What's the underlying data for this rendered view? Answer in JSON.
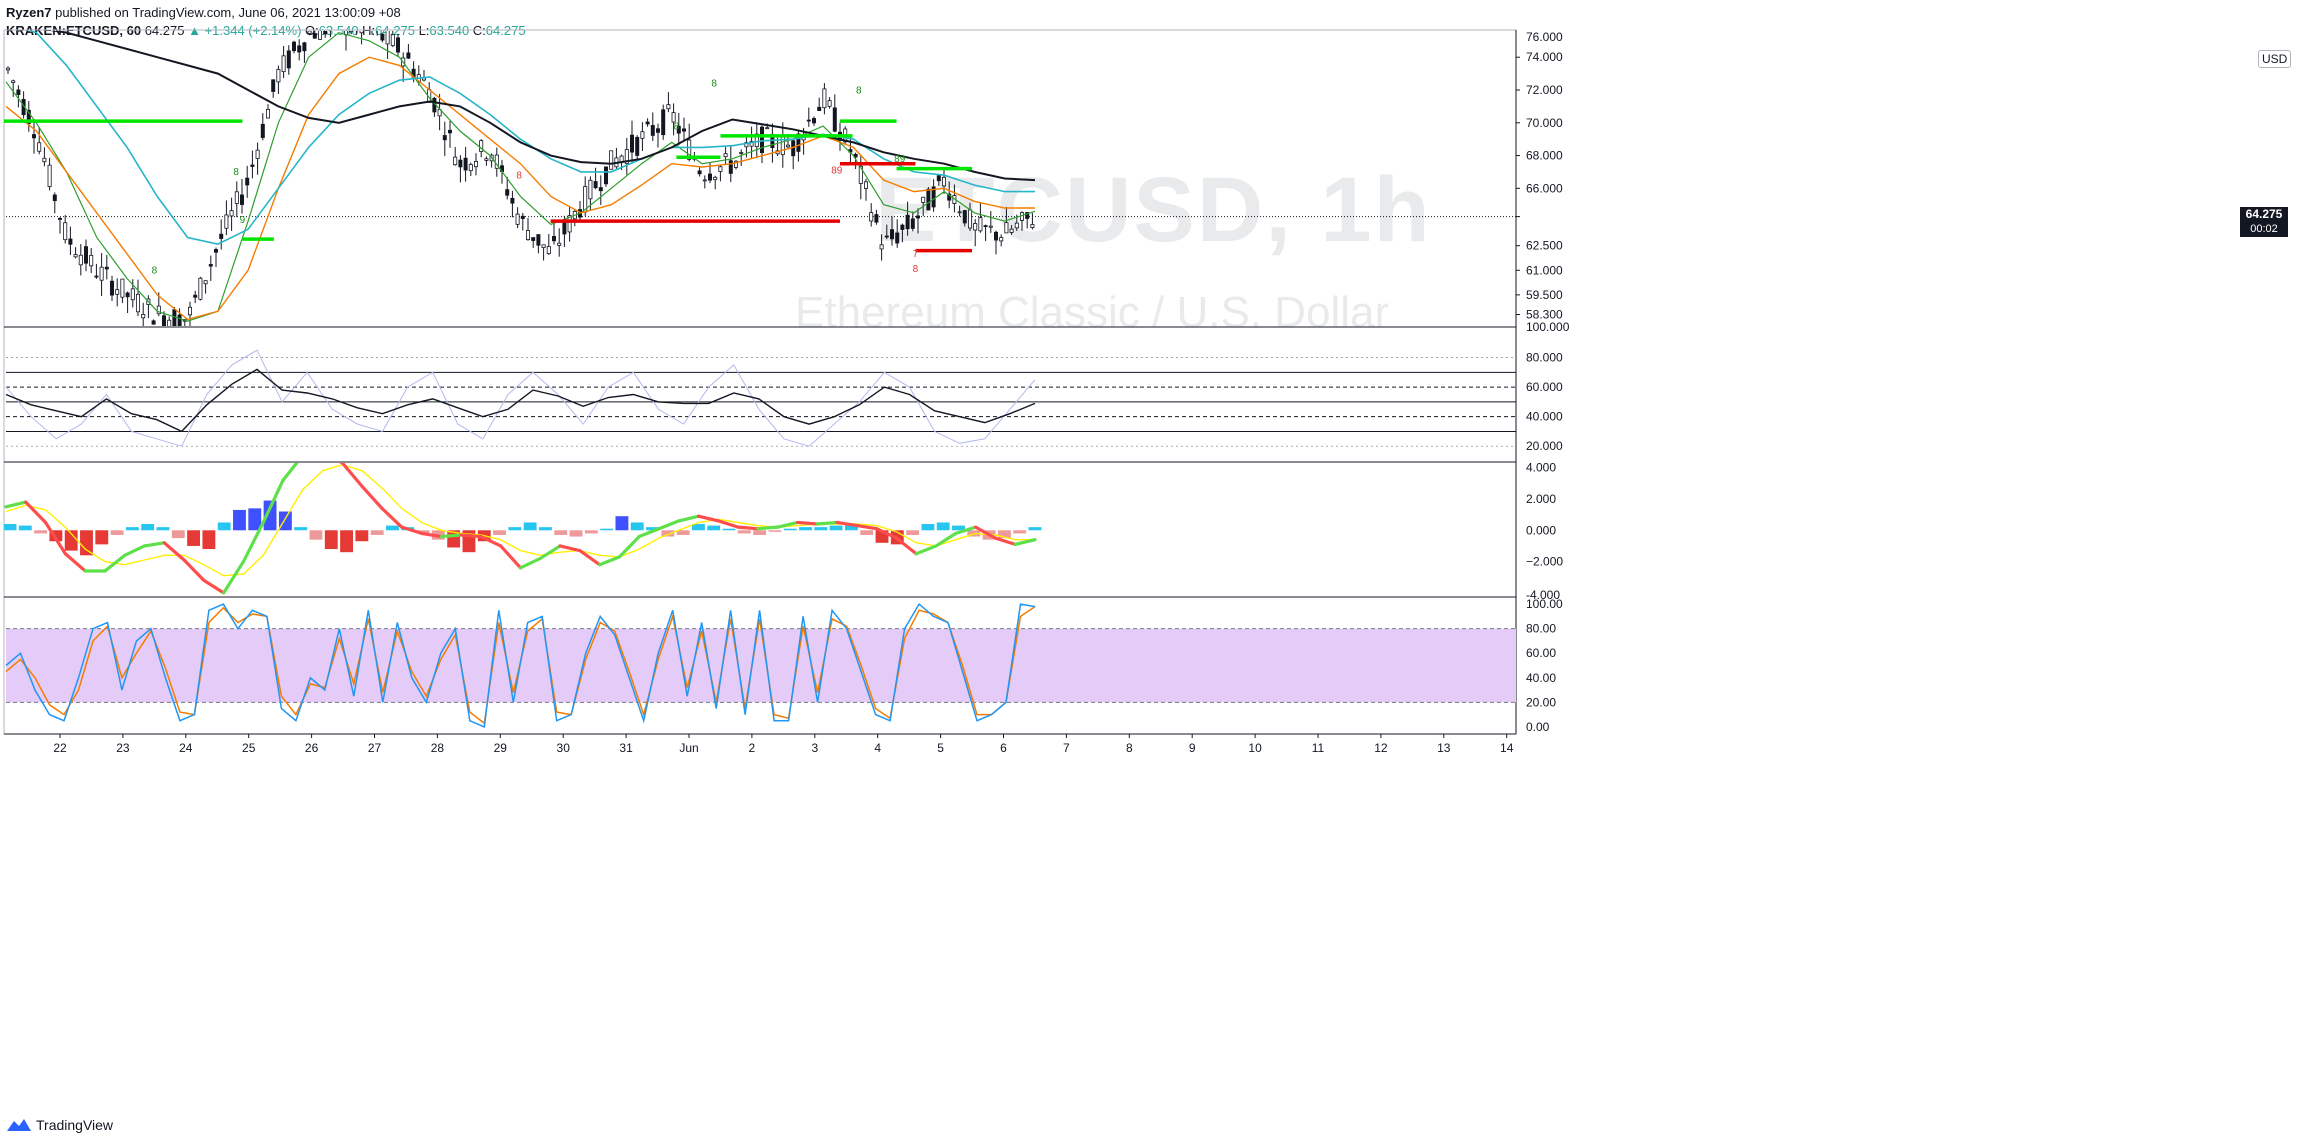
{
  "header": {
    "author": "Ryzen7",
    "published": "published on TradingView.com, June 06, 2021 13:00:09 +08",
    "symbol": "KRAKEN:ETCUSD, 60",
    "last": "64.275",
    "change": "▲ +1.344 (+2.14%)",
    "o_label": "O:",
    "o_val": "63.540",
    "h_label": "H:",
    "h_val": "64.275",
    "l_label": "L:",
    "l_val": "63.540",
    "c_label": "C:",
    "c_val": "64.275"
  },
  "watermark": {
    "symbol": "ETCUSD, 1h",
    "name": "Ethereum Classic / U.S. Dollar"
  },
  "currency_badge": "USD",
  "last_price": {
    "value": "64.275",
    "countdown": "00:02"
  },
  "footer": {
    "brand": "TradingView"
  },
  "colors": {
    "up": "#26a69a",
    "green_level": "#00e600",
    "red_level": "#e60000",
    "ema_short": "#2e9e2e",
    "ema_mid": "#f57c00",
    "ema_long": "#26b6c9",
    "ma_black": "#131722",
    "stoch_band": "#e5cbf7"
  },
  "chart_data": [
    {
      "type": "line",
      "title": "",
      "pane": "price",
      "ylim": [
        57.6,
        75.6
      ],
      "y_ticks": [
        "74.000",
        "72.000",
        "70.000",
        "68.000",
        "66.000",
        "64.275",
        "62.500",
        "61.000",
        "59.500",
        "58.300"
      ],
      "y_top_partial": "76.000",
      "x_ticks": [
        "22",
        "23",
        "24",
        "25",
        "26",
        "27",
        "28",
        "29",
        "30",
        "31",
        "Jun",
        "2",
        "3",
        "4",
        "5",
        "6",
        "7",
        "8",
        "9",
        "10",
        "11",
        "12",
        "13",
        "14"
      ],
      "series": [
        {
          "values": [
            73.5,
            69.5,
            63.0,
            61.0,
            59.5,
            58.3,
            58.0,
            62.5,
            66.5,
            73.0,
            75.5,
            76.0,
            75.8,
            74.5,
            72.0,
            67.5,
            68.5,
            64.0,
            62.0,
            65.0,
            67.5,
            69.0,
            70.5,
            67.0,
            67.5,
            69.0,
            68.5,
            71.5,
            68.0,
            62.5,
            64.0,
            66.5,
            63.5,
            63.2,
            64.275
          ]
        },
        {
          "values": [
            72.5,
            70.0,
            67.0,
            63.0,
            60.5,
            58.5,
            57.9,
            58.5,
            64.0,
            70.0,
            74.0,
            75.5,
            75.0,
            74.0,
            71.5,
            69.5,
            68.0,
            65.5,
            63.8,
            64.5,
            66.0,
            67.5,
            68.8,
            67.5,
            67.8,
            68.5,
            69.0,
            69.8,
            68.0,
            65.0,
            64.5,
            65.8,
            64.5,
            64.0,
            64.6
          ]
        },
        {
          "values": [
            71.0,
            69.5,
            67.0,
            64.5,
            62.0,
            59.5,
            58.0,
            58.5,
            61.0,
            66.0,
            70.5,
            73.0,
            74.0,
            73.5,
            72.0,
            70.5,
            69.0,
            67.5,
            65.5,
            64.5,
            65.0,
            66.2,
            67.5,
            67.3,
            67.5,
            68.0,
            68.5,
            69.2,
            68.5,
            66.5,
            65.8,
            66.0,
            65.2,
            64.8,
            64.8
          ]
        },
        {
          "values": [
            76.0,
            75.5,
            73.5,
            71.0,
            68.5,
            65.5,
            63.0,
            62.6,
            63.5,
            66.0,
            68.5,
            70.5,
            71.8,
            72.6,
            72.8,
            71.8,
            70.5,
            69.0,
            67.8,
            67.0,
            67.0,
            67.8,
            68.5,
            68.5,
            68.6,
            68.9,
            69.0,
            69.3,
            69.0,
            67.8,
            67.0,
            66.8,
            66.2,
            65.8,
            65.8
          ]
        },
        {
          "values": [
            76.0,
            75.8,
            75.5,
            75.0,
            74.5,
            74.0,
            73.5,
            73.0,
            72.0,
            71.0,
            70.3,
            70.0,
            70.5,
            71.0,
            71.3,
            71.0,
            70.0,
            68.8,
            68.0,
            67.6,
            67.5,
            67.8,
            68.5,
            69.5,
            70.2,
            69.9,
            69.6,
            69.2,
            68.8,
            68.2,
            67.8,
            67.5,
            67.0,
            66.6,
            66.5
          ]
        }
      ],
      "levels": [
        {
          "color": "green",
          "y": 70.1,
          "x_from": 21.1,
          "x_to": 24.9
        },
        {
          "color": "green",
          "y": 62.9,
          "x_from": 24.9,
          "x_to": 25.4
        },
        {
          "color": "green",
          "y": 69.2,
          "x_from": 32.5,
          "x_to": 34.6
        },
        {
          "color": "green",
          "y": 67.9,
          "x_from": 31.8,
          "x_to": 32.5
        },
        {
          "color": "green",
          "y": 70.1,
          "x_from": 34.4,
          "x_to": 35.3
        },
        {
          "color": "green",
          "y": 67.2,
          "x_from": 35.3,
          "x_to": 36.5
        },
        {
          "color": "red",
          "y": 64.0,
          "x_from": 29.8,
          "x_to": 34.4
        },
        {
          "color": "red",
          "y": 67.5,
          "x_from": 34.4,
          "x_to": 35.6
        },
        {
          "color": "red",
          "y": 62.2,
          "x_from": 35.6,
          "x_to": 36.5
        }
      ],
      "counts": [
        {
          "text": "8",
          "color": "green",
          "x": 24.8,
          "y": 66.8
        },
        {
          "text": "9",
          "color": "green",
          "x": 24.9,
          "y": 63.9
        },
        {
          "text": "8",
          "color": "green",
          "x": 23.5,
          "y": 60.8
        },
        {
          "text": "8",
          "color": "green",
          "x": 32.4,
          "y": 72.2
        },
        {
          "text": "8",
          "color": "green",
          "x": 31.8,
          "y": 69.6
        },
        {
          "text": "8",
          "color": "green",
          "x": 34.7,
          "y": 71.8
        },
        {
          "text": "89",
          "color": "green",
          "x": 35.35,
          "y": 67.6
        },
        {
          "text": "8",
          "color": "red",
          "x": 29.3,
          "y": 66.6
        },
        {
          "text": "89",
          "color": "red",
          "x": 34.35,
          "y": 66.9
        },
        {
          "text": "7",
          "color": "red",
          "x": 35.6,
          "y": 61.8
        },
        {
          "text": "8",
          "color": "red",
          "x": 35.6,
          "y": 60.9
        }
      ]
    },
    {
      "type": "line",
      "pane": "rsi",
      "ylim": [
        10,
        100
      ],
      "y_ticks": [
        "80.000",
        "60.000",
        "40.000",
        "20.000"
      ],
      "y_top_partial": "100.000",
      "bands": [
        70,
        50,
        30
      ],
      "dashed": [
        60,
        40
      ],
      "series": [
        {
          "values": [
            55,
            48,
            44,
            40,
            52,
            42,
            38,
            30,
            48,
            62,
            72,
            58,
            56,
            52,
            46,
            42,
            48,
            52,
            46,
            40,
            45,
            58,
            54,
            47,
            53,
            55,
            50,
            49,
            49,
            56,
            52,
            40,
            35,
            40,
            48,
            60,
            55,
            44,
            40,
            36,
            42,
            49
          ]
        },
        {
          "values": [
            60,
            40,
            25,
            35,
            55,
            30,
            25,
            20,
            55,
            75,
            85,
            50,
            70,
            45,
            35,
            30,
            60,
            70,
            35,
            25,
            55,
            70,
            55,
            35,
            60,
            70,
            45,
            35,
            60,
            75,
            45,
            25,
            20,
            35,
            50,
            70,
            60,
            30,
            22,
            25,
            45,
            65
          ]
        }
      ]
    },
    {
      "type": "bar",
      "pane": "macd",
      "ylim": [
        -4.2,
        4.3
      ],
      "y_ticks": [
        "4.000",
        "2.000",
        "0.000",
        "-2.000"
      ],
      "y_bottom_partial": "-4.000",
      "histogram": [
        0.4,
        0.3,
        -0.2,
        -0.7,
        -1.3,
        -1.6,
        -0.9,
        -0.3,
        0.2,
        0.4,
        0.2,
        -0.5,
        -1.0,
        -1.2,
        0.5,
        1.3,
        1.4,
        1.9,
        1.2,
        0.2,
        -0.6,
        -1.2,
        -1.4,
        -0.7,
        -0.3,
        0.3,
        0.2,
        -0.2,
        -0.6,
        -1.1,
        -1.4,
        -0.7,
        -0.3,
        0.2,
        0.5,
        0.2,
        -0.3,
        -0.4,
        -0.2,
        0.1,
        0.9,
        0.5,
        0.2,
        -0.4,
        -0.3,
        0.4,
        0.3,
        0.1,
        -0.2,
        -0.3,
        -0.1,
        0.1,
        0.2,
        0.2,
        0.3,
        0.4,
        -0.3,
        -0.8,
        -0.9,
        -0.3,
        0.4,
        0.5,
        0.3,
        -0.4,
        -0.6,
        -0.5,
        -0.2,
        0.2
      ],
      "series": [
        {
          "name": "macd",
          "values": [
            1.5,
            1.8,
            0.5,
            -1.5,
            -2.6,
            -2.6,
            -1.6,
            -1.0,
            -0.8,
            -1.9,
            -3.2,
            -4.0,
            -2.0,
            0.5,
            3.2,
            4.8,
            5.0,
            4.3,
            2.8,
            1.4,
            0.2,
            -0.2,
            -0.4,
            -0.3,
            -0.4,
            -1.0,
            -2.4,
            -1.8,
            -1.0,
            -1.3,
            -2.2,
            -1.7,
            -0.4,
            0.1,
            0.6,
            0.9,
            0.6,
            0.2,
            0.1,
            0.2,
            0.5,
            0.4,
            0.5,
            0.3,
            0.1,
            -0.5,
            -1.5,
            -1.0,
            -0.2,
            0.2,
            -0.5,
            -0.9,
            -0.6
          ]
        },
        {
          "name": "signal",
          "values": [
            1.2,
            1.6,
            1.3,
            0.2,
            -1.2,
            -2.0,
            -2.2,
            -1.9,
            -1.6,
            -1.6,
            -2.2,
            -2.9,
            -2.8,
            -1.6,
            0.5,
            2.6,
            3.8,
            4.2,
            3.8,
            2.7,
            1.4,
            0.5,
            0.0,
            -0.2,
            -0.3,
            -0.6,
            -1.3,
            -1.6,
            -1.4,
            -1.3,
            -1.6,
            -1.7,
            -1.2,
            -0.5,
            0.0,
            0.5,
            0.7,
            0.5,
            0.3,
            0.2,
            0.3,
            0.4,
            0.4,
            0.4,
            0.3,
            -0.1,
            -0.8,
            -1.0,
            -0.6,
            -0.2,
            -0.3,
            -0.6,
            -0.6
          ]
        }
      ]
    },
    {
      "type": "line",
      "pane": "stochastic",
      "ylim": [
        -5,
        105
      ],
      "y_ticks": [
        "100.00",
        "80.00",
        "60.00",
        "40.00",
        "20.00",
        "0.00"
      ],
      "band": [
        20,
        80
      ],
      "series": [
        {
          "name": "k",
          "values": [
            50,
            60,
            30,
            10,
            5,
            40,
            80,
            85,
            30,
            70,
            80,
            40,
            5,
            10,
            95,
            100,
            80,
            95,
            90,
            15,
            5,
            40,
            30,
            80,
            25,
            95,
            20,
            85,
            40,
            20,
            60,
            80,
            5,
            0,
            95,
            20,
            85,
            90,
            5,
            10,
            60,
            90,
            75,
            40,
            5,
            60,
            95,
            25,
            85,
            15,
            95,
            10,
            95,
            5,
            5,
            90,
            20,
            95,
            80,
            45,
            10,
            5,
            80,
            100,
            90,
            85,
            45,
            5,
            10,
            20,
            100,
            98
          ]
        },
        {
          "name": "d",
          "values": [
            45,
            55,
            40,
            18,
            10,
            30,
            70,
            82,
            40,
            60,
            78,
            48,
            12,
            10,
            85,
            97,
            85,
            92,
            90,
            25,
            10,
            35,
            32,
            72,
            35,
            88,
            28,
            78,
            45,
            25,
            55,
            75,
            12,
            3,
            85,
            28,
            78,
            88,
            12,
            10,
            55,
            85,
            78,
            45,
            10,
            55,
            90,
            32,
            78,
            20,
            88,
            15,
            88,
            10,
            7,
            82,
            28,
            88,
            82,
            50,
            15,
            7,
            72,
            95,
            92,
            85,
            50,
            10,
            10,
            20,
            90,
            98
          ]
        }
      ]
    }
  ]
}
